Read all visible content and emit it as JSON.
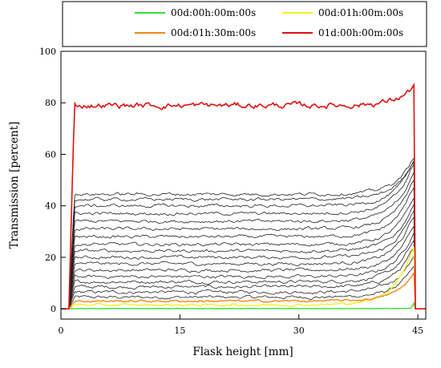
{
  "chart_data": {
    "type": "line",
    "xlabel": "Flask height [mm]",
    "ylabel": "Transmission [percent]",
    "xlim": [
      0,
      46
    ],
    "ylim": [
      -4,
      100
    ],
    "xticks": [
      0,
      15,
      30,
      45
    ],
    "yticks": [
      0,
      20,
      40,
      60,
      80,
      100
    ],
    "grid": false,
    "legend_position": "top",
    "series": [
      {
        "name": "00d:00h:00m:00s",
        "color": "#33dd33",
        "level": 0.1,
        "edge_rise": 0.1
      },
      {
        "name": "00d:01h:00m:00s",
        "color": "#f2f020",
        "level": 1.5,
        "edge_rise": 20
      },
      {
        "name": "00d:01h:30m:00s",
        "color": "#f08a1a",
        "level": 3.0,
        "edge_rise": 9
      },
      {
        "name": "01d:00h:00m:00s",
        "color": "#dd1111",
        "level": 79,
        "edge_rise": 6
      }
    ],
    "intermediate_series": {
      "color": "#222222",
      "levels": [
        4.5,
        6.5,
        8.5,
        10.5,
        12.5,
        15,
        17.5,
        20,
        22.5,
        25,
        28,
        31,
        34,
        37,
        40,
        42.5,
        44.5
      ],
      "edge_rise": [
        10,
        12,
        13,
        14,
        15,
        15,
        16,
        16,
        16,
        16,
        17,
        17,
        17,
        17,
        15,
        13,
        12
      ]
    }
  }
}
